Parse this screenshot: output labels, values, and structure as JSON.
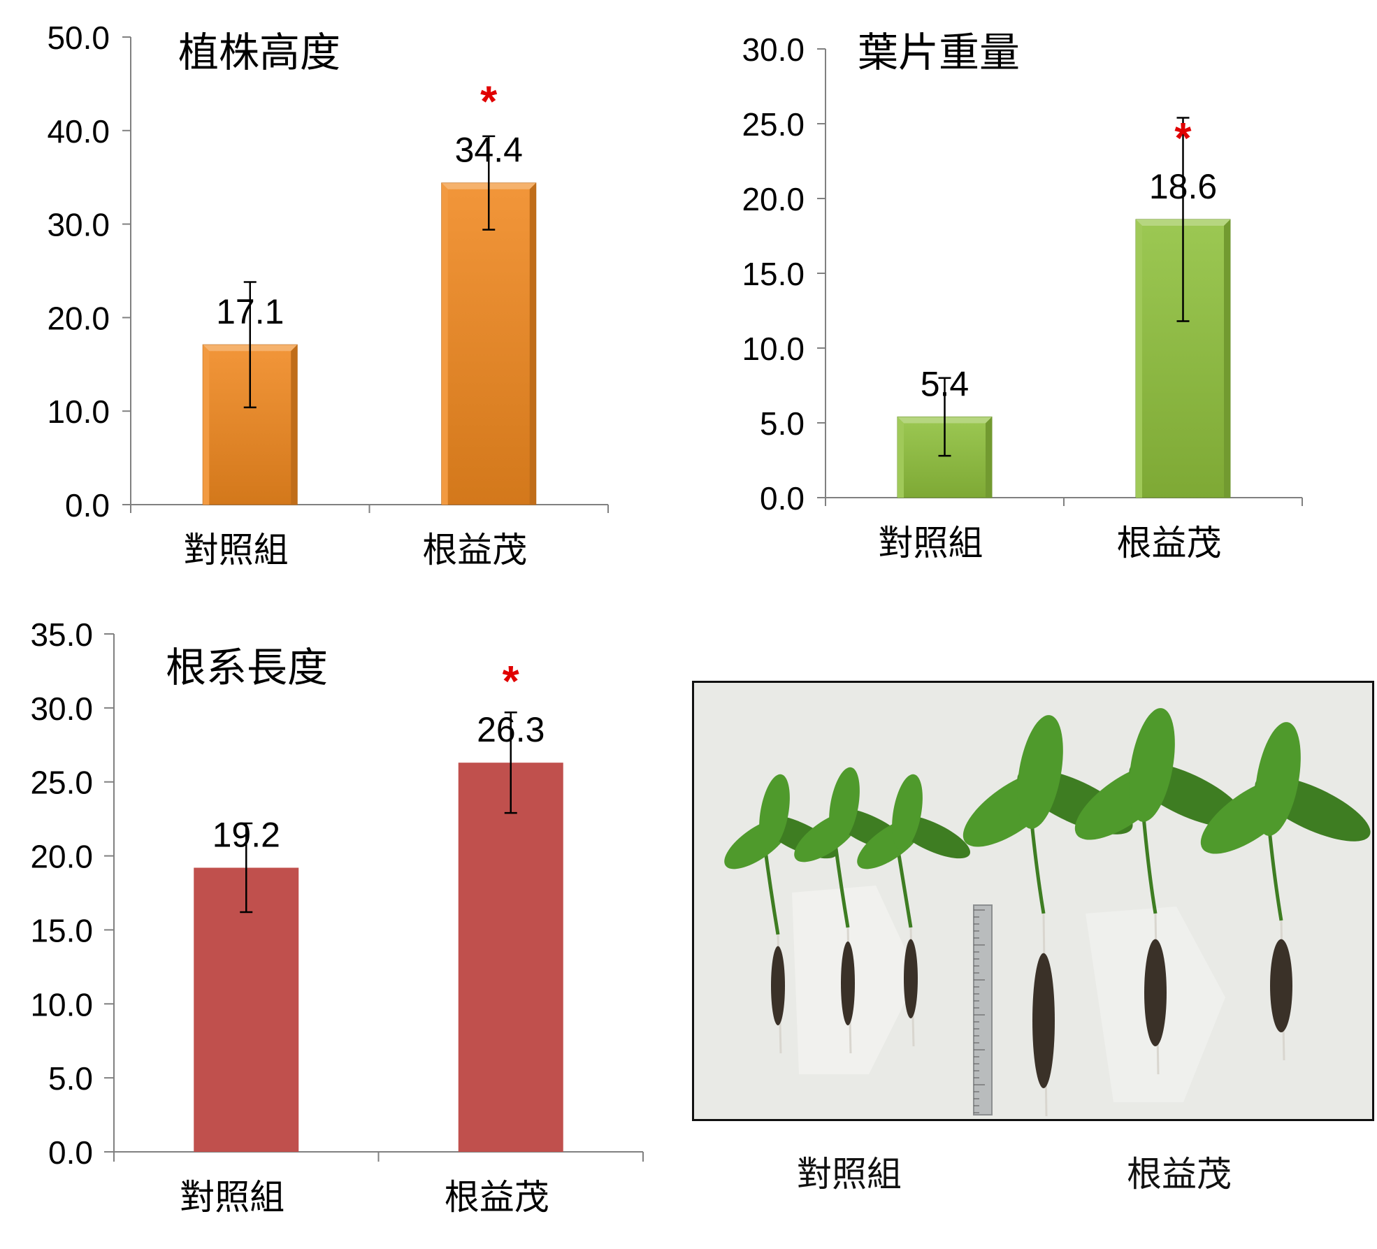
{
  "chart_data": [
    {
      "type": "bar",
      "title": "植株高度",
      "categories": [
        "對照組",
        "根益茂"
      ],
      "values": [
        17.1,
        34.4
      ],
      "value_labels": [
        "17.1",
        "34.4"
      ],
      "error": [
        6.7,
        5.0
      ],
      "significance": [
        "",
        "*"
      ],
      "ylim": [
        0,
        50
      ],
      "yticks": [
        "0.0",
        "10.0",
        "20.0",
        "30.0",
        "40.0",
        "50.0"
      ],
      "color": "#f0881f",
      "grid": false
    },
    {
      "type": "bar",
      "title": "葉片重量",
      "categories": [
        "對照組",
        "根益茂"
      ],
      "values": [
        5.4,
        18.6
      ],
      "value_labels": [
        "5.4",
        "18.6"
      ],
      "error": [
        2.6,
        6.8
      ],
      "significance": [
        "",
        "*"
      ],
      "ylim": [
        0,
        30
      ],
      "yticks": [
        "0.0",
        "5.0",
        "10.0",
        "15.0",
        "20.0",
        "25.0",
        "30.0"
      ],
      "color": "#8fc03c",
      "grid": false
    },
    {
      "type": "bar",
      "title": "根系長度",
      "categories": [
        "對照組",
        "根益茂"
      ],
      "values": [
        19.2,
        26.3
      ],
      "value_labels": [
        "19.2",
        "26.3"
      ],
      "error": [
        3.0,
        3.4
      ],
      "significance": [
        "",
        "*"
      ],
      "ylim": [
        0,
        35
      ],
      "yticks": [
        "0.0",
        "5.0",
        "10.0",
        "15.0",
        "20.0",
        "25.0",
        "30.0",
        "35.0"
      ],
      "color": "#c0504d",
      "grid": false
    }
  ],
  "photo": {
    "captions": [
      "對照組",
      "根益茂"
    ],
    "colors": {
      "background": "#e9eae6",
      "leaf": "#4f9a2c",
      "leaf_dark": "#3e7d22",
      "root": "#3a3128",
      "ruler": "#b9bcbd"
    }
  }
}
